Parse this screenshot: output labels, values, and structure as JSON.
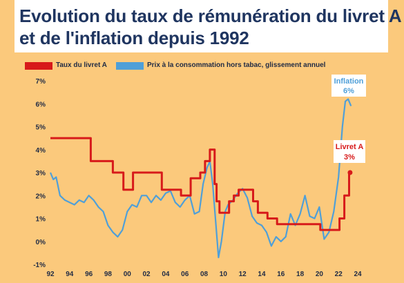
{
  "title_lines": [
    "Evolution du taux de rémunération du livret A",
    "et de l'inflation depuis 1992"
  ],
  "chart_data": {
    "type": "line",
    "title": "Evolution du taux de rémunération du livret A et de l'inflation depuis 1992",
    "xlabel": "",
    "ylabel": "",
    "x_ticks": [
      "92",
      "94",
      "96",
      "98",
      "00",
      "02",
      "04",
      "06",
      "08",
      "10",
      "12",
      "14",
      "16",
      "18",
      "20",
      "22",
      "24"
    ],
    "y_ticks": [
      "7%",
      "6%",
      "5%",
      "4%",
      "3%",
      "2%",
      "1%",
      "0%",
      "-1%"
    ],
    "xlim": [
      1992,
      2024.5
    ],
    "ylim": [
      -1,
      7
    ],
    "legend_position": "top",
    "series": [
      {
        "name": "Taux du livret A",
        "color": "#d71a1a",
        "step": true,
        "points": [
          [
            1992.0,
            4.5
          ],
          [
            1996.2,
            4.5
          ],
          [
            1996.2,
            3.5
          ],
          [
            1998.5,
            3.5
          ],
          [
            1998.5,
            3.0
          ],
          [
            1999.6,
            3.0
          ],
          [
            1999.6,
            2.25
          ],
          [
            2000.6,
            2.25
          ],
          [
            2000.6,
            3.0
          ],
          [
            2003.6,
            3.0
          ],
          [
            2003.6,
            2.25
          ],
          [
            2005.6,
            2.25
          ],
          [
            2005.6,
            2.0
          ],
          [
            2006.6,
            2.0
          ],
          [
            2006.6,
            2.75
          ],
          [
            2007.6,
            2.75
          ],
          [
            2007.6,
            3.0
          ],
          [
            2008.1,
            3.0
          ],
          [
            2008.1,
            3.5
          ],
          [
            2008.6,
            3.5
          ],
          [
            2008.6,
            4.0
          ],
          [
            2009.1,
            4.0
          ],
          [
            2009.1,
            2.5
          ],
          [
            2009.3,
            2.5
          ],
          [
            2009.3,
            1.75
          ],
          [
            2009.6,
            1.75
          ],
          [
            2009.6,
            1.25
          ],
          [
            2010.6,
            1.25
          ],
          [
            2010.6,
            1.75
          ],
          [
            2011.1,
            1.75
          ],
          [
            2011.1,
            2.0
          ],
          [
            2011.6,
            2.0
          ],
          [
            2011.6,
            2.25
          ],
          [
            2013.1,
            2.25
          ],
          [
            2013.1,
            1.75
          ],
          [
            2013.6,
            1.75
          ],
          [
            2013.6,
            1.25
          ],
          [
            2014.6,
            1.25
          ],
          [
            2014.6,
            1.0
          ],
          [
            2015.6,
            1.0
          ],
          [
            2015.6,
            0.75
          ],
          [
            2020.1,
            0.75
          ],
          [
            2020.1,
            0.5
          ],
          [
            2022.1,
            0.5
          ],
          [
            2022.1,
            1.0
          ],
          [
            2022.6,
            1.0
          ],
          [
            2022.6,
            2.0
          ],
          [
            2023.1,
            2.0
          ],
          [
            2023.1,
            3.0
          ],
          [
            2023.2,
            3.0
          ]
        ]
      },
      {
        "name": "Prix à la consommation hors tabac, glissement annuel",
        "color": "#4f9fd8",
        "step": false,
        "points": [
          [
            1992.0,
            3.0
          ],
          [
            1992.3,
            2.7
          ],
          [
            1992.6,
            2.8
          ],
          [
            1993.0,
            2.0
          ],
          [
            1993.5,
            1.8
          ],
          [
            1994.0,
            1.7
          ],
          [
            1994.5,
            1.6
          ],
          [
            1995.0,
            1.8
          ],
          [
            1995.5,
            1.7
          ],
          [
            1996.0,
            2.0
          ],
          [
            1996.5,
            1.8
          ],
          [
            1997.0,
            1.5
          ],
          [
            1997.5,
            1.3
          ],
          [
            1998.0,
            0.7
          ],
          [
            1998.5,
            0.4
          ],
          [
            1999.0,
            0.2
          ],
          [
            1999.5,
            0.5
          ],
          [
            2000.0,
            1.3
          ],
          [
            2000.5,
            1.6
          ],
          [
            2001.0,
            1.5
          ],
          [
            2001.5,
            2.0
          ],
          [
            2002.0,
            2.0
          ],
          [
            2002.5,
            1.7
          ],
          [
            2003.0,
            2.0
          ],
          [
            2003.5,
            1.8
          ],
          [
            2004.0,
            2.1
          ],
          [
            2004.5,
            2.2
          ],
          [
            2005.0,
            1.7
          ],
          [
            2005.5,
            1.5
          ],
          [
            2006.0,
            1.8
          ],
          [
            2006.5,
            2.0
          ],
          [
            2007.0,
            1.2
          ],
          [
            2007.5,
            1.3
          ],
          [
            2007.9,
            2.5
          ],
          [
            2008.3,
            3.2
          ],
          [
            2008.6,
            3.5
          ],
          [
            2008.9,
            2.5
          ],
          [
            2009.2,
            0.9
          ],
          [
            2009.5,
            -0.7
          ],
          [
            2009.8,
            0.0
          ],
          [
            2010.2,
            1.3
          ],
          [
            2010.5,
            1.6
          ],
          [
            2011.0,
            1.8
          ],
          [
            2011.5,
            2.1
          ],
          [
            2012.0,
            2.3
          ],
          [
            2012.5,
            1.9
          ],
          [
            2013.0,
            1.1
          ],
          [
            2013.5,
            0.8
          ],
          [
            2014.0,
            0.7
          ],
          [
            2014.5,
            0.4
          ],
          [
            2015.0,
            -0.2
          ],
          [
            2015.5,
            0.2
          ],
          [
            2016.0,
            0.0
          ],
          [
            2016.5,
            0.2
          ],
          [
            2017.0,
            1.2
          ],
          [
            2017.5,
            0.7
          ],
          [
            2018.0,
            1.2
          ],
          [
            2018.5,
            2.0
          ],
          [
            2019.0,
            1.1
          ],
          [
            2019.5,
            1.0
          ],
          [
            2020.0,
            1.5
          ],
          [
            2020.5,
            0.1
          ],
          [
            2021.0,
            0.4
          ],
          [
            2021.5,
            1.3
          ],
          [
            2022.0,
            2.8
          ],
          [
            2022.4,
            5.0
          ],
          [
            2022.7,
            6.1
          ],
          [
            2023.0,
            6.2
          ],
          [
            2023.3,
            5.9
          ]
        ]
      }
    ],
    "annotations": [
      {
        "label": "Inflation",
        "value": "6%",
        "color": "#4f9fd8"
      },
      {
        "label": "Livret A",
        "value": "3%",
        "color": "#d71a1a"
      }
    ]
  }
}
